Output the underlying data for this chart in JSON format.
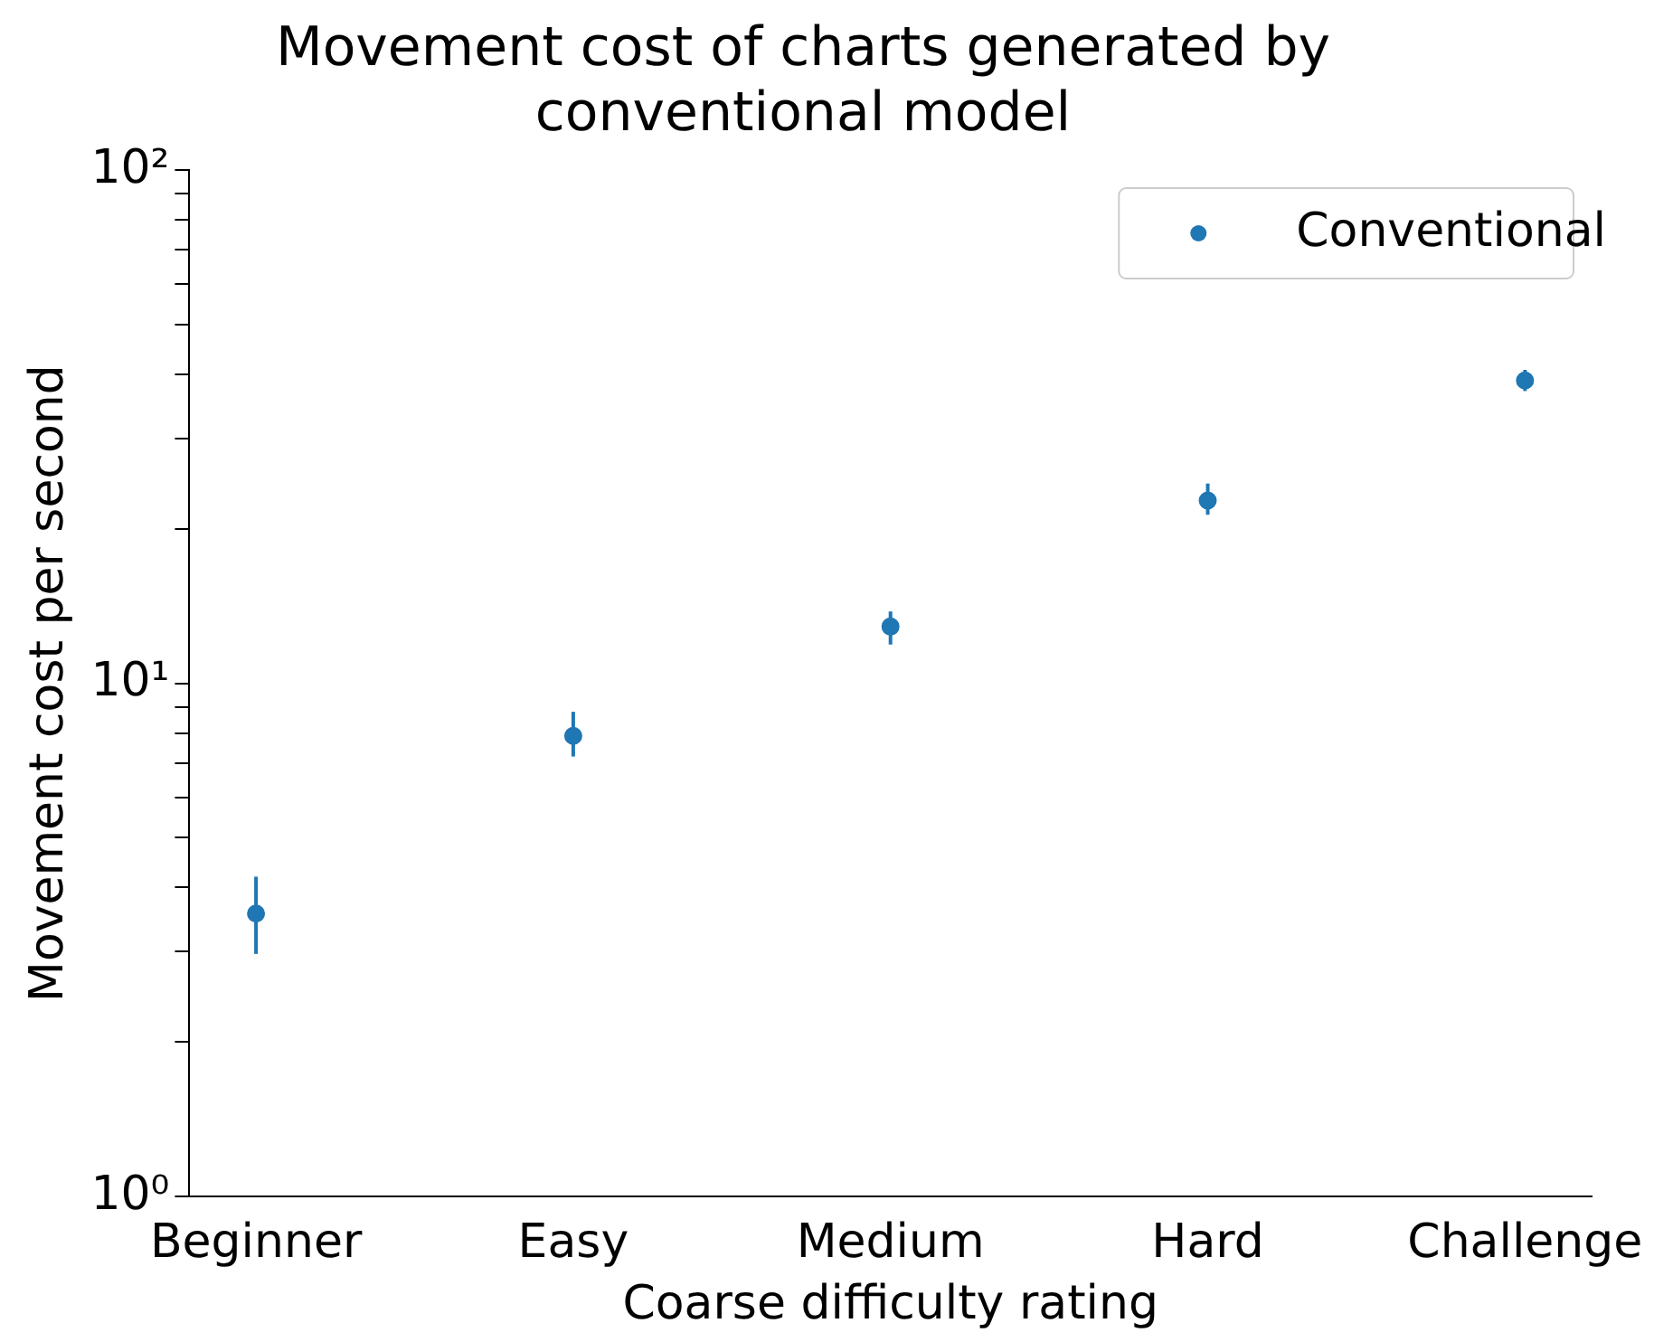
{
  "chart_data": {
    "type": "scatter",
    "title": "Movement cost of charts generated by\nconventional model",
    "xlabel": "Coarse difficulty rating",
    "ylabel": "Movement cost per second",
    "categories": [
      "Beginner",
      "Easy",
      "Medium",
      "Hard",
      "Challenge"
    ],
    "series": [
      {
        "name": "Conventional",
        "color": "#1f77b4",
        "values": [
          3.56,
          7.9,
          12.9,
          22.7,
          38.9
        ],
        "errors": [
          [
            2.97,
            4.2
          ],
          [
            7.2,
            8.8
          ],
          [
            11.9,
            13.8
          ],
          [
            21.3,
            24.5
          ],
          [
            37.1,
            40.8
          ]
        ]
      }
    ],
    "log": "y",
    "ylim": [
      1,
      100
    ],
    "yticks": [
      {
        "value": 1,
        "label": "10⁰"
      },
      {
        "value": 2,
        "label": null
      },
      {
        "value": 3,
        "label": null
      },
      {
        "value": 4,
        "label": null
      },
      {
        "value": 5,
        "label": null
      },
      {
        "value": 6,
        "label": null
      },
      {
        "value": 7,
        "label": null
      },
      {
        "value": 8,
        "label": null
      },
      {
        "value": 9,
        "label": null
      },
      {
        "value": 10,
        "label": "10¹"
      },
      {
        "value": 20,
        "label": null
      },
      {
        "value": 30,
        "label": null
      },
      {
        "value": 40,
        "label": null
      },
      {
        "value": 50,
        "label": null
      },
      {
        "value": 60,
        "label": null
      },
      {
        "value": 70,
        "label": null
      },
      {
        "value": 80,
        "label": null
      },
      {
        "value": 90,
        "label": null
      },
      {
        "value": 100,
        "label": "10²"
      }
    ],
    "grid": false,
    "legend": "top right",
    "marker": "circle"
  }
}
